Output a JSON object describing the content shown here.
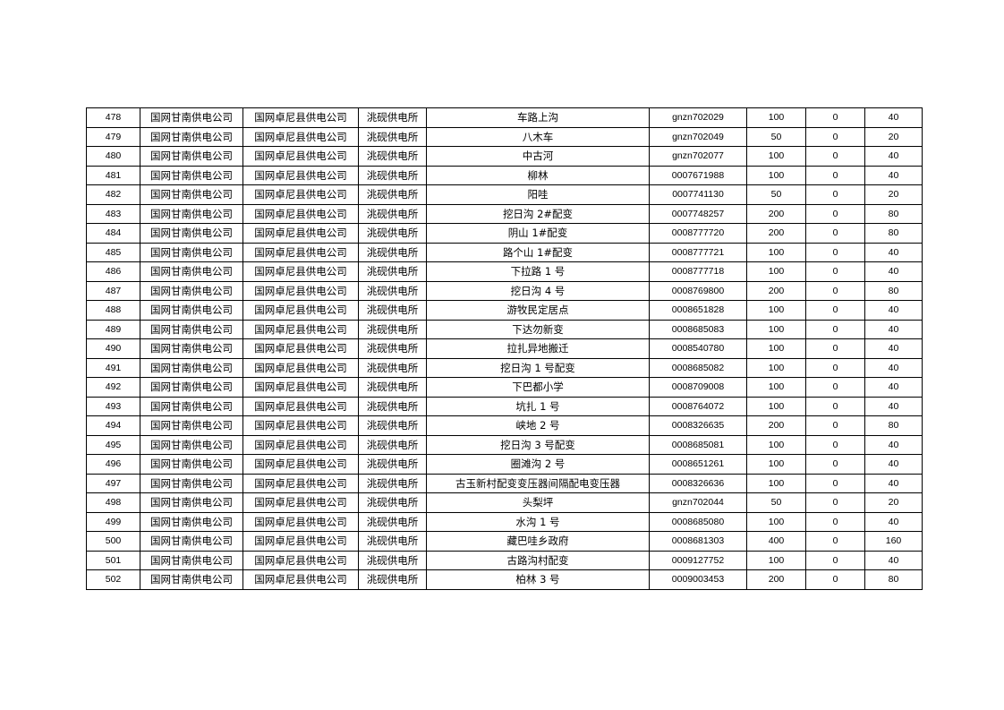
{
  "table": {
    "rows": [
      [
        "478",
        "国网甘南供电公司",
        "国网卓尼县供电公司",
        "洮砚供电所",
        "车路上沟",
        "gnzn702029",
        "100",
        "0",
        "40"
      ],
      [
        "479",
        "国网甘南供电公司",
        "国网卓尼县供电公司",
        "洮砚供电所",
        "八木车",
        "gnzn702049",
        "50",
        "0",
        "20"
      ],
      [
        "480",
        "国网甘南供电公司",
        "国网卓尼县供电公司",
        "洮砚供电所",
        "中古河",
        "gnzn702077",
        "100",
        "0",
        "40"
      ],
      [
        "481",
        "国网甘南供电公司",
        "国网卓尼县供电公司",
        "洮砚供电所",
        "柳林",
        "0007671988",
        "100",
        "0",
        "40"
      ],
      [
        "482",
        "国网甘南供电公司",
        "国网卓尼县供电公司",
        "洮砚供电所",
        "阳哇",
        "0007741130",
        "50",
        "0",
        "20"
      ],
      [
        "483",
        "国网甘南供电公司",
        "国网卓尼县供电公司",
        "洮砚供电所",
        "挖日沟 2#配变",
        "0007748257",
        "200",
        "0",
        "80"
      ],
      [
        "484",
        "国网甘南供电公司",
        "国网卓尼县供电公司",
        "洮砚供电所",
        "阴山 1#配变",
        "0008777720",
        "200",
        "0",
        "80"
      ],
      [
        "485",
        "国网甘南供电公司",
        "国网卓尼县供电公司",
        "洮砚供电所",
        "路个山 1#配变",
        "0008777721",
        "100",
        "0",
        "40"
      ],
      [
        "486",
        "国网甘南供电公司",
        "国网卓尼县供电公司",
        "洮砚供电所",
        "下拉路 1 号",
        "0008777718",
        "100",
        "0",
        "40"
      ],
      [
        "487",
        "国网甘南供电公司",
        "国网卓尼县供电公司",
        "洮砚供电所",
        "挖日沟 4 号",
        "0008769800",
        "200",
        "0",
        "80"
      ],
      [
        "488",
        "国网甘南供电公司",
        "国网卓尼县供电公司",
        "洮砚供电所",
        "游牧民定居点",
        "0008651828",
        "100",
        "0",
        "40"
      ],
      [
        "489",
        "国网甘南供电公司",
        "国网卓尼县供电公司",
        "洮砚供电所",
        "下达勿新变",
        "0008685083",
        "100",
        "0",
        "40"
      ],
      [
        "490",
        "国网甘南供电公司",
        "国网卓尼县供电公司",
        "洮砚供电所",
        "拉扎异地搬迁",
        "0008540780",
        "100",
        "0",
        "40"
      ],
      [
        "491",
        "国网甘南供电公司",
        "国网卓尼县供电公司",
        "洮砚供电所",
        "挖日沟 1 号配变",
        "0008685082",
        "100",
        "0",
        "40"
      ],
      [
        "492",
        "国网甘南供电公司",
        "国网卓尼县供电公司",
        "洮砚供电所",
        "下巴都小学",
        "0008709008",
        "100",
        "0",
        "40"
      ],
      [
        "493",
        "国网甘南供电公司",
        "国网卓尼县供电公司",
        "洮砚供电所",
        "坑扎 1 号",
        "0008764072",
        "100",
        "0",
        "40"
      ],
      [
        "494",
        "国网甘南供电公司",
        "国网卓尼县供电公司",
        "洮砚供电所",
        "峡地 2 号",
        "0008326635",
        "200",
        "0",
        "80"
      ],
      [
        "495",
        "国网甘南供电公司",
        "国网卓尼县供电公司",
        "洮砚供电所",
        "挖日沟 3 号配变",
        "0008685081",
        "100",
        "0",
        "40"
      ],
      [
        "496",
        "国网甘南供电公司",
        "国网卓尼县供电公司",
        "洮砚供电所",
        "圈滩沟 2 号",
        "0008651261",
        "100",
        "0",
        "40"
      ],
      [
        "497",
        "国网甘南供电公司",
        "国网卓尼县供电公司",
        "洮砚供电所",
        "古玉新村配变变压器间隔配电变压器",
        "0008326636",
        "100",
        "0",
        "40"
      ],
      [
        "498",
        "国网甘南供电公司",
        "国网卓尼县供电公司",
        "洮砚供电所",
        "头梨坪",
        "gnzn702044",
        "50",
        "0",
        "20"
      ],
      [
        "499",
        "国网甘南供电公司",
        "国网卓尼县供电公司",
        "洮砚供电所",
        "水沟 1 号",
        "0008685080",
        "100",
        "0",
        "40"
      ],
      [
        "500",
        "国网甘南供电公司",
        "国网卓尼县供电公司",
        "洮砚供电所",
        "藏巴哇乡政府",
        "0008681303",
        "400",
        "0",
        "160"
      ],
      [
        "501",
        "国网甘南供电公司",
        "国网卓尼县供电公司",
        "洮砚供电所",
        "古路沟村配变",
        "0009127752",
        "100",
        "0",
        "40"
      ],
      [
        "502",
        "国网甘南供电公司",
        "国网卓尼县供电公司",
        "洮砚供电所",
        "柏林 3 号",
        "0009003453",
        "200",
        "0",
        "80"
      ]
    ]
  }
}
